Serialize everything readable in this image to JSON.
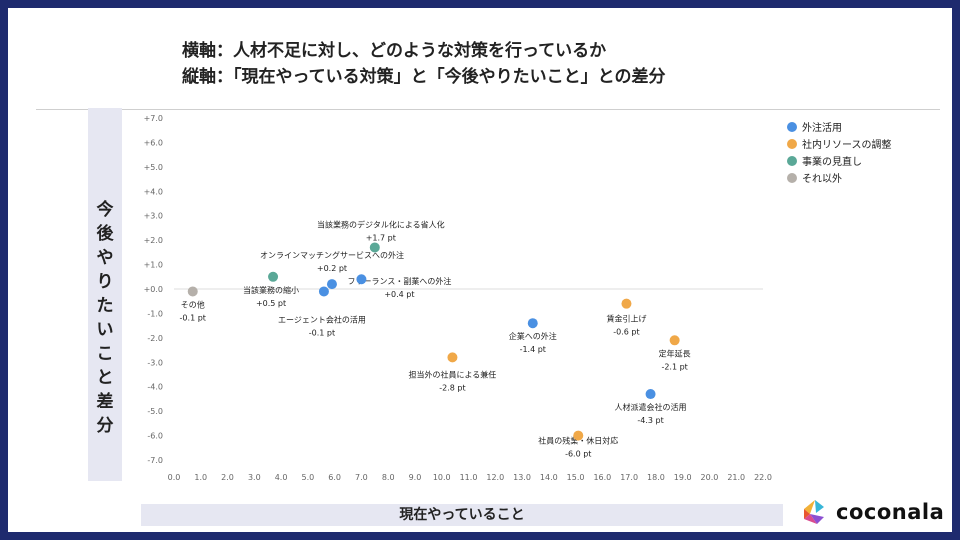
{
  "header": {
    "title_line1": "横軸：人材不足に対し、どのような対策を行っているか",
    "title_line2": "縦軸：「現在やっている対策」と「今後やりたいこと」との差分"
  },
  "brand": {
    "name": "coconala"
  },
  "chart_data": {
    "type": "scatter",
    "title": "",
    "xlabel": "現在やっていること",
    "ylabel": "今後やりたいこと差分",
    "xlim": [
      0,
      22
    ],
    "ylim": [
      -7,
      7
    ],
    "x_ticks": [
      "0.0",
      "1.0",
      "2.0",
      "3.0",
      "4.0",
      "5.0",
      "6.0",
      "7.0",
      "8.0",
      "9.0",
      "10.0",
      "11.0",
      "12.0",
      "13.0",
      "14.0",
      "15.0",
      "16.0",
      "17.0",
      "18.0",
      "19.0",
      "20.0",
      "21.0",
      "22.0"
    ],
    "y_ticks": [
      "+7.0",
      "+6.0",
      "+5.0",
      "+4.0",
      "+3.0",
      "+2.0",
      "+1.0",
      "+0.0",
      "-1.0",
      "-2.0",
      "-3.0",
      "-4.0",
      "-5.0",
      "-6.0",
      "-7.0"
    ],
    "legend_position": "top-right",
    "series": [
      {
        "name": "外注活用",
        "color": "#4a90e2",
        "points": [
          {
            "label": "オンラインマッチングサービスへの外注",
            "value": "+0.2 pt",
            "x": 5.9,
            "y": 0.2
          },
          {
            "label": "エージェント会社の活用",
            "value": "-0.1 pt",
            "x": 5.6,
            "y": -0.1
          },
          {
            "label": "フリーランス・副業への外注",
            "value": "+0.4 pt",
            "x": 7.0,
            "y": 0.4
          },
          {
            "label": "企業への外注",
            "value": "-1.4 pt",
            "x": 13.4,
            "y": -1.4
          },
          {
            "label": "人材派遣会社の活用",
            "value": "-4.3 pt",
            "x": 17.8,
            "y": -4.3
          }
        ]
      },
      {
        "name": "社内リソースの調整",
        "color": "#f0a848",
        "points": [
          {
            "label": "担当外の社員による兼任",
            "value": "-2.8 pt",
            "x": 10.4,
            "y": -2.8
          },
          {
            "label": "賃金引上げ",
            "value": "-0.6 pt",
            "x": 16.9,
            "y": -0.6
          },
          {
            "label": "定年延長",
            "value": "-2.1 pt",
            "x": 18.7,
            "y": -2.1
          },
          {
            "label": "社員の残業・休日対応",
            "value": "-6.0 pt",
            "x": 15.1,
            "y": -6.0
          }
        ]
      },
      {
        "name": "事業の見直し",
        "color": "#5aa897",
        "points": [
          {
            "label": "当該業務のデジタル化による省人化",
            "value": "+1.7 pt",
            "x": 7.5,
            "y": 1.7
          },
          {
            "label": "当該業務の縮小",
            "value": "+0.5 pt",
            "x": 3.7,
            "y": 0.5
          }
        ]
      },
      {
        "name": "それ以外",
        "color": "#b5b0aa",
        "points": [
          {
            "label": "その他",
            "value": "-0.1 pt",
            "x": 0.7,
            "y": -0.1
          }
        ]
      }
    ]
  }
}
